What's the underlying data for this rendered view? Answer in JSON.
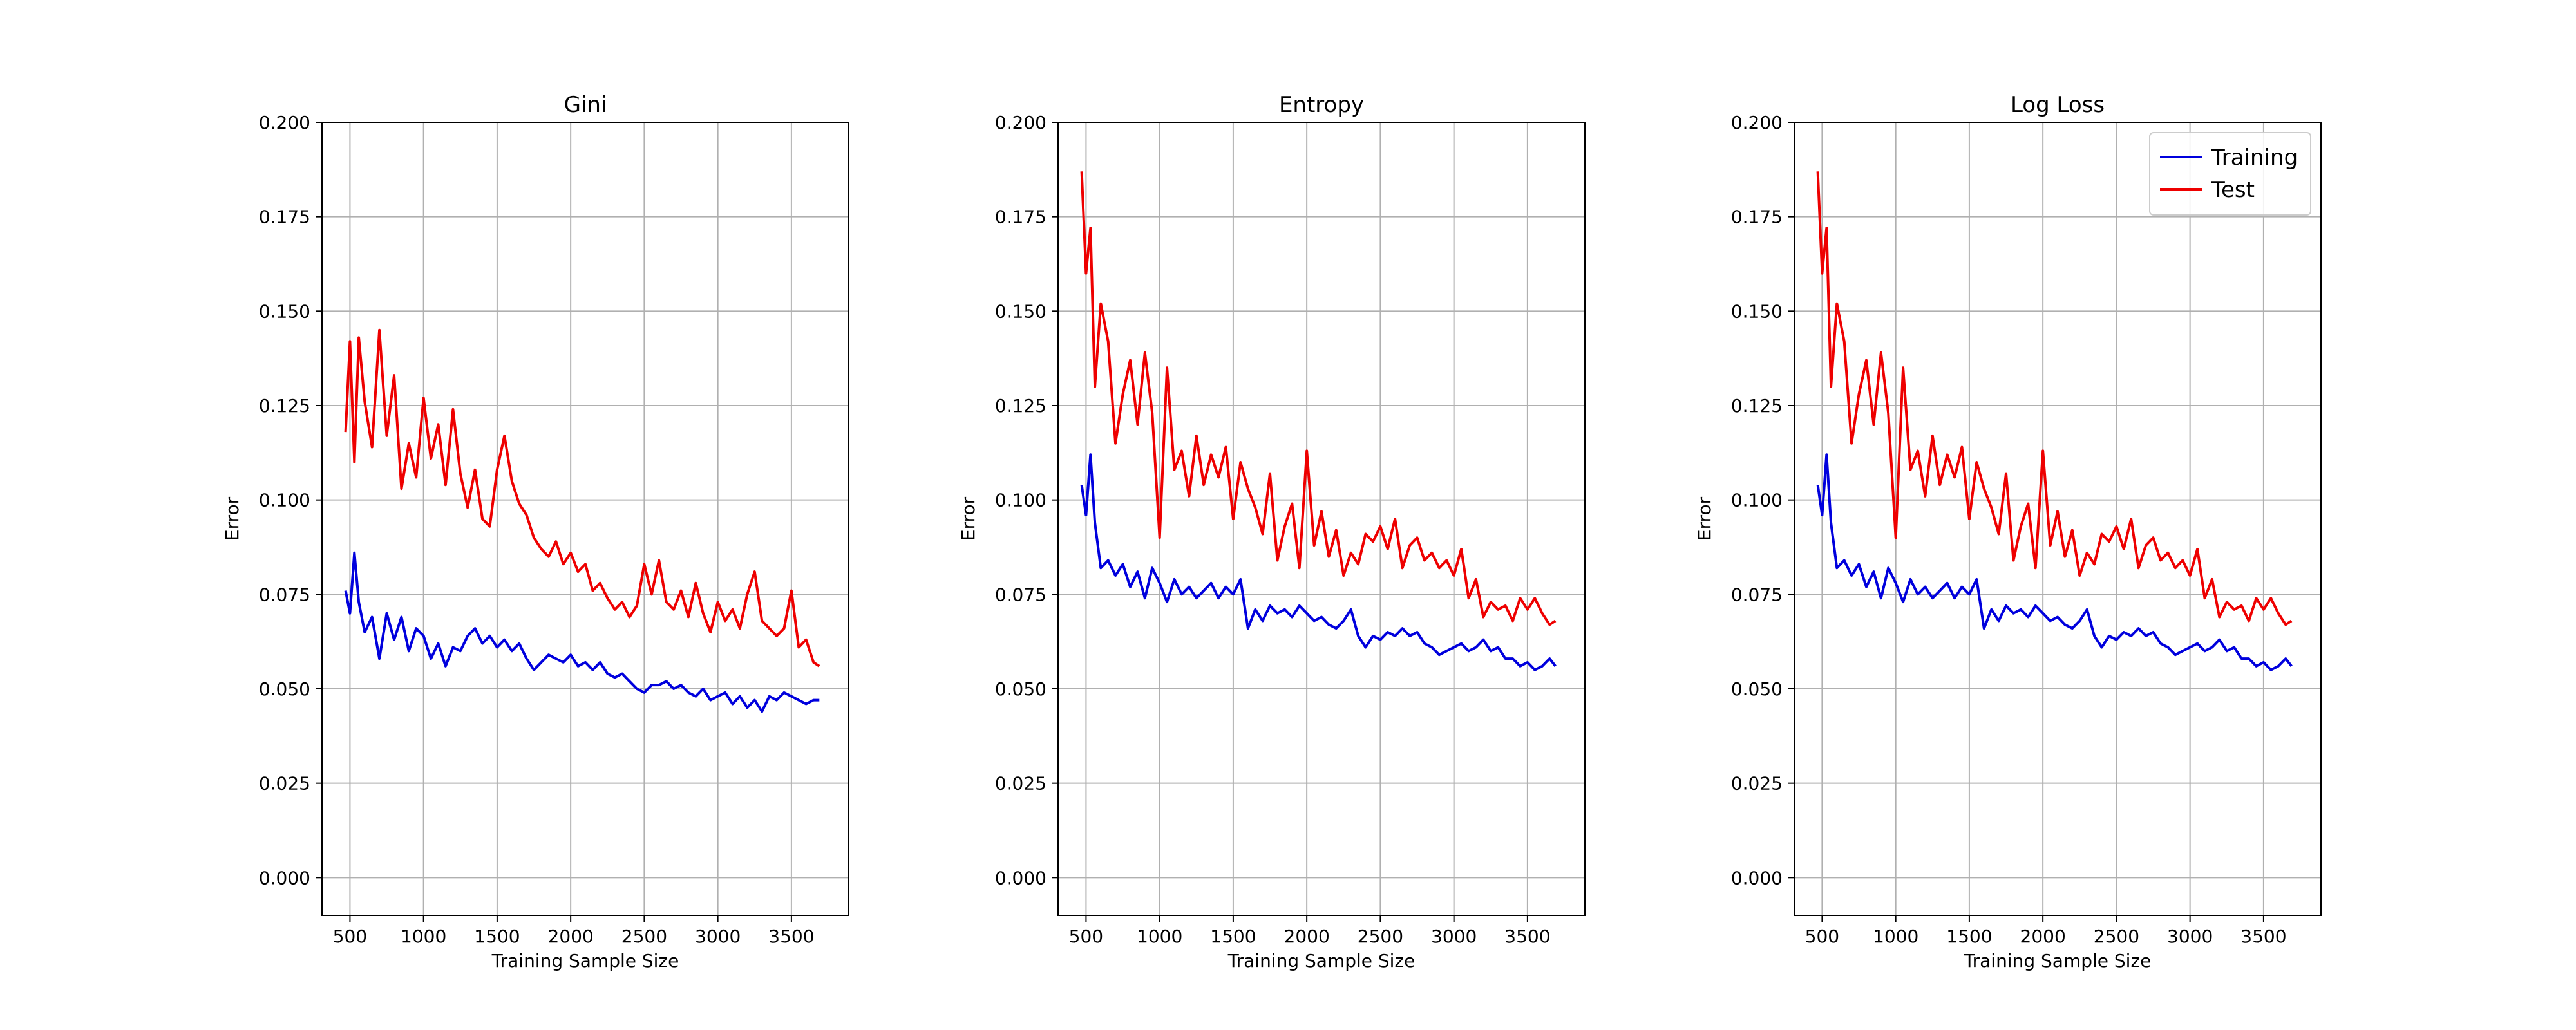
{
  "colors": {
    "training": "#0000dd",
    "test": "#ee0000",
    "grid": "#b0b0b0",
    "axes": "#000000"
  },
  "legend": {
    "placement": "top-right",
    "panel": 2,
    "entries": [
      "Training",
      "Test"
    ]
  },
  "chart_data": [
    {
      "type": "line",
      "title": "Gini",
      "xlabel": "Training Sample Size",
      "ylabel": "Error",
      "xlim": [
        310,
        3890
      ],
      "ylim": [
        -0.01,
        0.2
      ],
      "xticks": [
        500,
        1000,
        1500,
        2000,
        2500,
        3000,
        3500
      ],
      "xtick_labels": [
        "500",
        "1000",
        "1500",
        "2000",
        "2500",
        "3000",
        "3500"
      ],
      "yticks": [
        0.0,
        0.025,
        0.05,
        0.075,
        0.1,
        0.125,
        0.15,
        0.175,
        0.2
      ],
      "ytick_labels": [
        "0.000",
        "0.025",
        "0.050",
        "0.075",
        "0.100",
        "0.125",
        "0.150",
        "0.175",
        "0.200"
      ],
      "grid": true,
      "series": [
        {
          "name": "Training",
          "x": [
            470,
            500,
            530,
            560,
            600,
            650,
            700,
            750,
            800,
            850,
            900,
            950,
            1000,
            1050,
            1100,
            1150,
            1200,
            1250,
            1300,
            1350,
            1400,
            1450,
            1500,
            1550,
            1600,
            1650,
            1700,
            1750,
            1800,
            1850,
            1900,
            1950,
            2000,
            2050,
            2100,
            2150,
            2200,
            2250,
            2300,
            2350,
            2400,
            2450,
            2500,
            2550,
            2600,
            2650,
            2700,
            2750,
            2800,
            2850,
            2900,
            2950,
            3000,
            3050,
            3100,
            3150,
            3200,
            3250,
            3300,
            3350,
            3400,
            3450,
            3500,
            3550,
            3600,
            3650,
            3690
          ],
          "y": [
            0.076,
            0.07,
            0.086,
            0.073,
            0.065,
            0.069,
            0.058,
            0.07,
            0.063,
            0.069,
            0.06,
            0.066,
            0.064,
            0.058,
            0.062,
            0.056,
            0.061,
            0.06,
            0.064,
            0.066,
            0.062,
            0.064,
            0.061,
            0.063,
            0.06,
            0.062,
            0.058,
            0.055,
            0.057,
            0.059,
            0.058,
            0.057,
            0.059,
            0.056,
            0.057,
            0.055,
            0.057,
            0.054,
            0.053,
            0.054,
            0.052,
            0.05,
            0.049,
            0.051,
            0.051,
            0.052,
            0.05,
            0.051,
            0.049,
            0.048,
            0.05,
            0.047,
            0.048,
            0.049,
            0.046,
            0.048,
            0.045,
            0.047,
            0.044,
            0.048,
            0.047,
            0.049,
            0.048,
            0.047,
            0.046,
            0.047,
            0.047
          ]
        },
        {
          "name": "Test",
          "x": [
            470,
            500,
            530,
            560,
            600,
            650,
            700,
            750,
            800,
            850,
            900,
            950,
            1000,
            1050,
            1100,
            1150,
            1200,
            1250,
            1300,
            1350,
            1400,
            1450,
            1500,
            1550,
            1600,
            1650,
            1700,
            1750,
            1800,
            1850,
            1900,
            1950,
            2000,
            2050,
            2100,
            2150,
            2200,
            2250,
            2300,
            2350,
            2400,
            2450,
            2500,
            2550,
            2600,
            2650,
            2700,
            2750,
            2800,
            2850,
            2900,
            2950,
            3000,
            3050,
            3100,
            3150,
            3200,
            3250,
            3300,
            3350,
            3400,
            3450,
            3500,
            3550,
            3600,
            3650,
            3690
          ],
          "y": [
            0.118,
            0.142,
            0.11,
            0.143,
            0.126,
            0.114,
            0.145,
            0.117,
            0.133,
            0.103,
            0.115,
            0.106,
            0.127,
            0.111,
            0.12,
            0.104,
            0.124,
            0.107,
            0.098,
            0.108,
            0.095,
            0.093,
            0.108,
            0.117,
            0.105,
            0.099,
            0.096,
            0.09,
            0.087,
            0.085,
            0.089,
            0.083,
            0.086,
            0.081,
            0.083,
            0.076,
            0.078,
            0.074,
            0.071,
            0.073,
            0.069,
            0.072,
            0.083,
            0.075,
            0.084,
            0.073,
            0.071,
            0.076,
            0.069,
            0.078,
            0.07,
            0.065,
            0.073,
            0.068,
            0.071,
            0.066,
            0.075,
            0.081,
            0.068,
            0.066,
            0.064,
            0.066,
            0.076,
            0.061,
            0.063,
            0.057,
            0.056
          ]
        }
      ]
    },
    {
      "type": "line",
      "title": "Entropy",
      "xlabel": "Training Sample Size",
      "ylabel": "Error",
      "xlim": [
        310,
        3890
      ],
      "ylim": [
        -0.01,
        0.2
      ],
      "xticks": [
        500,
        1000,
        1500,
        2000,
        2500,
        3000,
        3500
      ],
      "xtick_labels": [
        "500",
        "1000",
        "1500",
        "2000",
        "2500",
        "3000",
        "3500"
      ],
      "yticks": [
        0.0,
        0.025,
        0.05,
        0.075,
        0.1,
        0.125,
        0.15,
        0.175,
        0.2
      ],
      "ytick_labels": [
        "0.000",
        "0.025",
        "0.050",
        "0.075",
        "0.100",
        "0.125",
        "0.150",
        "0.175",
        "0.200"
      ],
      "grid": true,
      "series": [
        {
          "name": "Training",
          "x": [
            470,
            500,
            530,
            560,
            600,
            650,
            700,
            750,
            800,
            850,
            900,
            950,
            1000,
            1050,
            1100,
            1150,
            1200,
            1250,
            1300,
            1350,
            1400,
            1450,
            1500,
            1550,
            1600,
            1650,
            1700,
            1750,
            1800,
            1850,
            1900,
            1950,
            2000,
            2050,
            2100,
            2150,
            2200,
            2250,
            2300,
            2350,
            2400,
            2450,
            2500,
            2550,
            2600,
            2650,
            2700,
            2750,
            2800,
            2850,
            2900,
            2950,
            3000,
            3050,
            3100,
            3150,
            3200,
            3250,
            3300,
            3350,
            3400,
            3450,
            3500,
            3550,
            3600,
            3650,
            3690
          ],
          "y": [
            0.104,
            0.096,
            0.112,
            0.094,
            0.082,
            0.084,
            0.08,
            0.083,
            0.077,
            0.081,
            0.074,
            0.082,
            0.078,
            0.073,
            0.079,
            0.075,
            0.077,
            0.074,
            0.076,
            0.078,
            0.074,
            0.077,
            0.075,
            0.079,
            0.066,
            0.071,
            0.068,
            0.072,
            0.07,
            0.071,
            0.069,
            0.072,
            0.07,
            0.068,
            0.069,
            0.067,
            0.066,
            0.068,
            0.071,
            0.064,
            0.061,
            0.064,
            0.063,
            0.065,
            0.064,
            0.066,
            0.064,
            0.065,
            0.062,
            0.061,
            0.059,
            0.06,
            0.061,
            0.062,
            0.06,
            0.061,
            0.063,
            0.06,
            0.061,
            0.058,
            0.058,
            0.056,
            0.057,
            0.055,
            0.056,
            0.058,
            0.056
          ]
        },
        {
          "name": "Test",
          "x": [
            470,
            500,
            530,
            560,
            600,
            650,
            700,
            750,
            800,
            850,
            900,
            950,
            1000,
            1050,
            1100,
            1150,
            1200,
            1250,
            1300,
            1350,
            1400,
            1450,
            1500,
            1550,
            1600,
            1650,
            1700,
            1750,
            1800,
            1850,
            1900,
            1950,
            2000,
            2050,
            2100,
            2150,
            2200,
            2250,
            2300,
            2350,
            2400,
            2450,
            2500,
            2550,
            2600,
            2650,
            2700,
            2750,
            2800,
            2850,
            2900,
            2950,
            3000,
            3050,
            3100,
            3150,
            3200,
            3250,
            3300,
            3350,
            3400,
            3450,
            3500,
            3550,
            3600,
            3650,
            3690
          ],
          "y": [
            0.187,
            0.16,
            0.172,
            0.13,
            0.152,
            0.142,
            0.115,
            0.128,
            0.137,
            0.12,
            0.139,
            0.123,
            0.09,
            0.135,
            0.108,
            0.113,
            0.101,
            0.117,
            0.104,
            0.112,
            0.106,
            0.114,
            0.095,
            0.11,
            0.103,
            0.098,
            0.091,
            0.107,
            0.084,
            0.093,
            0.099,
            0.082,
            0.113,
            0.088,
            0.097,
            0.085,
            0.092,
            0.08,
            0.086,
            0.083,
            0.091,
            0.089,
            0.093,
            0.087,
            0.095,
            0.082,
            0.088,
            0.09,
            0.084,
            0.086,
            0.082,
            0.084,
            0.08,
            0.087,
            0.074,
            0.079,
            0.069,
            0.073,
            0.071,
            0.072,
            0.068,
            0.074,
            0.071,
            0.074,
            0.07,
            0.067,
            0.068
          ]
        }
      ]
    },
    {
      "type": "line",
      "title": "Log Loss",
      "xlabel": "Training Sample Size",
      "ylabel": "Error",
      "xlim": [
        310,
        3890
      ],
      "ylim": [
        -0.01,
        0.2
      ],
      "xticks": [
        500,
        1000,
        1500,
        2000,
        2500,
        3000,
        3500
      ],
      "xtick_labels": [
        "500",
        "1000",
        "1500",
        "2000",
        "2500",
        "3000",
        "3500"
      ],
      "yticks": [
        0.0,
        0.025,
        0.05,
        0.075,
        0.1,
        0.125,
        0.15,
        0.175,
        0.2
      ],
      "ytick_labels": [
        "0.000",
        "0.025",
        "0.050",
        "0.075",
        "0.100",
        "0.125",
        "0.150",
        "0.175",
        "0.200"
      ],
      "grid": true,
      "series": [
        {
          "name": "Training",
          "x": [
            470,
            500,
            530,
            560,
            600,
            650,
            700,
            750,
            800,
            850,
            900,
            950,
            1000,
            1050,
            1100,
            1150,
            1200,
            1250,
            1300,
            1350,
            1400,
            1450,
            1500,
            1550,
            1600,
            1650,
            1700,
            1750,
            1800,
            1850,
            1900,
            1950,
            2000,
            2050,
            2100,
            2150,
            2200,
            2250,
            2300,
            2350,
            2400,
            2450,
            2500,
            2550,
            2600,
            2650,
            2700,
            2750,
            2800,
            2850,
            2900,
            2950,
            3000,
            3050,
            3100,
            3150,
            3200,
            3250,
            3300,
            3350,
            3400,
            3450,
            3500,
            3550,
            3600,
            3650,
            3690
          ],
          "y": [
            0.104,
            0.096,
            0.112,
            0.094,
            0.082,
            0.084,
            0.08,
            0.083,
            0.077,
            0.081,
            0.074,
            0.082,
            0.078,
            0.073,
            0.079,
            0.075,
            0.077,
            0.074,
            0.076,
            0.078,
            0.074,
            0.077,
            0.075,
            0.079,
            0.066,
            0.071,
            0.068,
            0.072,
            0.07,
            0.071,
            0.069,
            0.072,
            0.07,
            0.068,
            0.069,
            0.067,
            0.066,
            0.068,
            0.071,
            0.064,
            0.061,
            0.064,
            0.063,
            0.065,
            0.064,
            0.066,
            0.064,
            0.065,
            0.062,
            0.061,
            0.059,
            0.06,
            0.061,
            0.062,
            0.06,
            0.061,
            0.063,
            0.06,
            0.061,
            0.058,
            0.058,
            0.056,
            0.057,
            0.055,
            0.056,
            0.058,
            0.056
          ]
        },
        {
          "name": "Test",
          "x": [
            470,
            500,
            530,
            560,
            600,
            650,
            700,
            750,
            800,
            850,
            900,
            950,
            1000,
            1050,
            1100,
            1150,
            1200,
            1250,
            1300,
            1350,
            1400,
            1450,
            1500,
            1550,
            1600,
            1650,
            1700,
            1750,
            1800,
            1850,
            1900,
            1950,
            2000,
            2050,
            2100,
            2150,
            2200,
            2250,
            2300,
            2350,
            2400,
            2450,
            2500,
            2550,
            2600,
            2650,
            2700,
            2750,
            2800,
            2850,
            2900,
            2950,
            3000,
            3050,
            3100,
            3150,
            3200,
            3250,
            3300,
            3350,
            3400,
            3450,
            3500,
            3550,
            3600,
            3650,
            3690
          ],
          "y": [
            0.187,
            0.16,
            0.172,
            0.13,
            0.152,
            0.142,
            0.115,
            0.128,
            0.137,
            0.12,
            0.139,
            0.123,
            0.09,
            0.135,
            0.108,
            0.113,
            0.101,
            0.117,
            0.104,
            0.112,
            0.106,
            0.114,
            0.095,
            0.11,
            0.103,
            0.098,
            0.091,
            0.107,
            0.084,
            0.093,
            0.099,
            0.082,
            0.113,
            0.088,
            0.097,
            0.085,
            0.092,
            0.08,
            0.086,
            0.083,
            0.091,
            0.089,
            0.093,
            0.087,
            0.095,
            0.082,
            0.088,
            0.09,
            0.084,
            0.086,
            0.082,
            0.084,
            0.08,
            0.087,
            0.074,
            0.079,
            0.069,
            0.073,
            0.071,
            0.072,
            0.068,
            0.074,
            0.071,
            0.074,
            0.07,
            0.067,
            0.068
          ]
        }
      ]
    }
  ]
}
